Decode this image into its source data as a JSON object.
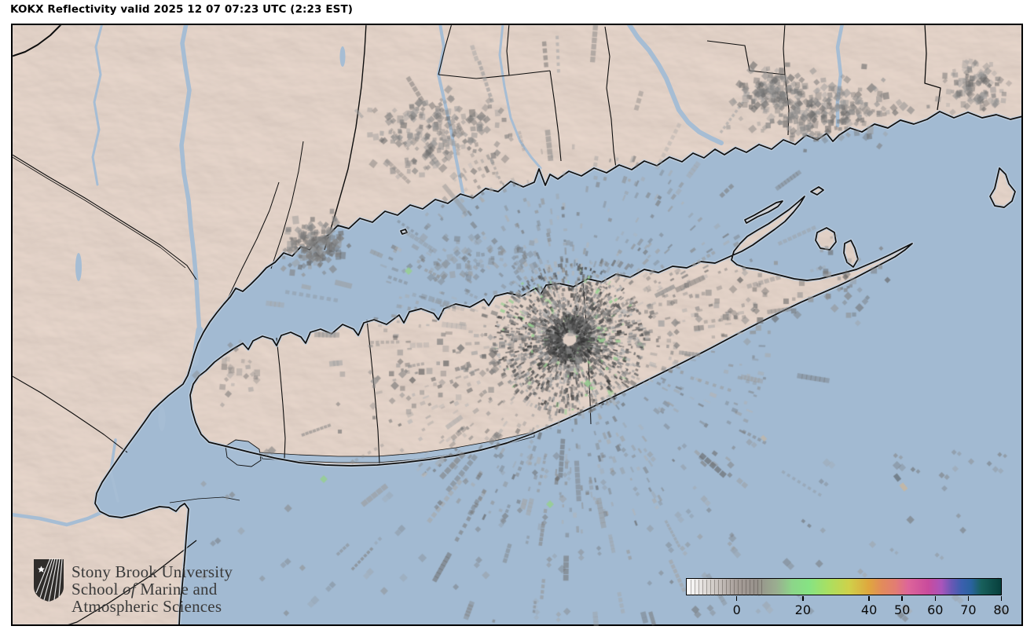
{
  "title": "KOKX Reflectivity valid 2025 12 07 07:23 UTC (2:23 EST)",
  "logo": {
    "line1": "Stony Brook University",
    "line2_pre": "School ",
    "line2_italic": "of",
    "line2_post": " Marine and",
    "line3": "Atmospheric Sciences"
  },
  "colorbar": {
    "min": -15,
    "max": 80,
    "ticks": [
      0,
      20,
      40,
      50,
      60,
      70,
      80
    ],
    "gradient": [
      {
        "v": -15,
        "c": "#ffffff"
      },
      {
        "v": -8,
        "c": "#d8d3cf"
      },
      {
        "v": 0,
        "c": "#a79e99"
      },
      {
        "v": 6,
        "c": "#97918b"
      },
      {
        "v": 12,
        "c": "#9aad90"
      },
      {
        "v": 17,
        "c": "#8cd689"
      },
      {
        "v": 22,
        "c": "#86e383"
      },
      {
        "v": 28,
        "c": "#abdf60"
      },
      {
        "v": 34,
        "c": "#cfd14a"
      },
      {
        "v": 40,
        "c": "#dfa73e"
      },
      {
        "v": 44,
        "c": "#e28b5b"
      },
      {
        "v": 48,
        "c": "#e27d72"
      },
      {
        "v": 52,
        "c": "#dd659a"
      },
      {
        "v": 58,
        "c": "#c94b9c"
      },
      {
        "v": 62,
        "c": "#a955bb"
      },
      {
        "v": 65,
        "c": "#6a58b5"
      },
      {
        "v": 68,
        "c": "#3c5fae"
      },
      {
        "v": 71,
        "c": "#2a629f"
      },
      {
        "v": 74,
        "c": "#18605c"
      },
      {
        "v": 80,
        "c": "#073f3c"
      }
    ]
  },
  "colors": {
    "water": "#a2bad2",
    "land": "#efe4de",
    "coast": "#0d0d0d",
    "shallow_fringe": "#c2d1e0",
    "echo_gray": "#8a8a8a",
    "echo_green": "#96cf90",
    "echo_tan": "#c5b7a2",
    "logo_text": "#3a3a3a"
  }
}
